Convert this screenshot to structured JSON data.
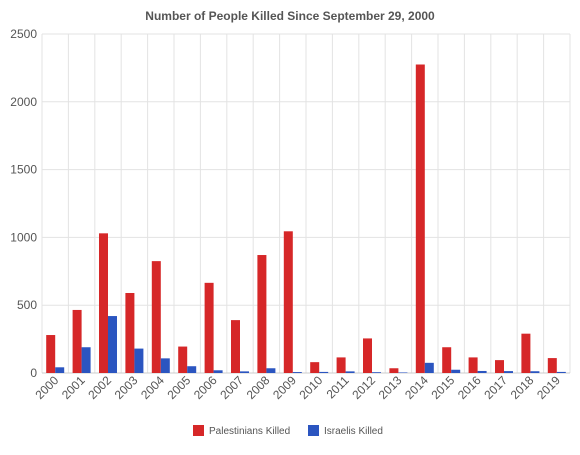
{
  "chart_data": {
    "type": "bar",
    "title": "Number of People Killed Since September 29, 2000",
    "xlabel": "",
    "ylabel": "",
    "ylim": [
      0,
      2500
    ],
    "yticks": [
      0,
      500,
      1000,
      1500,
      2000,
      2500
    ],
    "grid": true,
    "legend_position": "bottom",
    "categories": [
      "2000",
      "2001",
      "2002",
      "2003",
      "2004",
      "2005",
      "2006",
      "2007",
      "2008",
      "2009",
      "2010",
      "2011",
      "2012",
      "2013",
      "2014",
      "2015",
      "2016",
      "2017",
      "2018",
      "2019"
    ],
    "series": [
      {
        "name": "Palestinians Killed",
        "color": "#d62728",
        "values": [
          280,
          465,
          1030,
          590,
          825,
          195,
          665,
          390,
          870,
          1045,
          80,
          115,
          255,
          35,
          2275,
          190,
          115,
          95,
          290,
          110
        ]
      },
      {
        "name": "Israelis Killed",
        "color": "#2b55c0",
        "values": [
          42,
          190,
          420,
          180,
          108,
          50,
          20,
          12,
          35,
          7,
          8,
          12,
          6,
          4,
          75,
          24,
          15,
          14,
          13,
          8
        ]
      }
    ]
  }
}
